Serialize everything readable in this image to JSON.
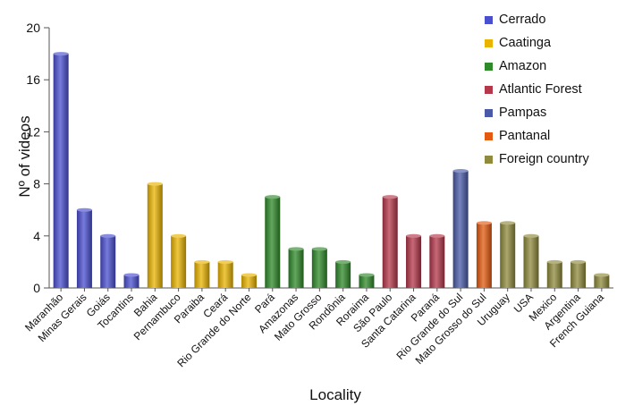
{
  "chart_data": {
    "type": "bar",
    "title": "",
    "xlabel": "Locality",
    "ylabel": "Nº of  videos",
    "ylim": [
      0,
      20
    ],
    "yticks": [
      0,
      4,
      8,
      12,
      16,
      20
    ],
    "grid": false,
    "legend_position": "top-right",
    "categories": [
      "Maranhão",
      "Minas Gerais",
      "Goiás",
      "Tocantins",
      "Bahia",
      "Pernambuco",
      "Paraiba",
      "Ceará",
      "Rio Grande do Norte",
      "Pará",
      "Amazonas",
      "Mato Grosso",
      "Rondônia",
      "Roraima",
      "São Paulo",
      "Santa Catarina",
      "Paraná",
      "Rio Grande do Sul",
      "Mato Grosso do Sul",
      "Uruguay",
      "USA",
      "Mexico",
      "Argentina",
      "French Guiana"
    ],
    "values": [
      18,
      6,
      4,
      1,
      8,
      4,
      2,
      2,
      1,
      7,
      3,
      3,
      2,
      1,
      7,
      4,
      4,
      9,
      5,
      5,
      4,
      2,
      2,
      1
    ],
    "groups": [
      "Cerrado",
      "Cerrado",
      "Cerrado",
      "Cerrado",
      "Caatinga",
      "Caatinga",
      "Caatinga",
      "Caatinga",
      "Caatinga",
      "Amazon",
      "Amazon",
      "Amazon",
      "Amazon",
      "Amazon",
      "Atlantic Forest",
      "Atlantic Forest",
      "Atlantic Forest",
      "Pampas",
      "Pantanal",
      "Foreign country",
      "Foreign country",
      "Foreign country",
      "Foreign country",
      "Foreign country"
    ],
    "legend": [
      {
        "name": "Cerrado",
        "color": "#4a4fd0"
      },
      {
        "name": "Caatinga",
        "color": "#e9b400"
      },
      {
        "name": "Amazon",
        "color": "#2f8a2a"
      },
      {
        "name": "Atlantic Forest",
        "color": "#b4374a"
      },
      {
        "name": "Pampas",
        "color": "#4a5aa8"
      },
      {
        "name": "Pantanal",
        "color": "#e45a10"
      },
      {
        "name": "Foreign country",
        "color": "#8f8a3c"
      }
    ]
  }
}
